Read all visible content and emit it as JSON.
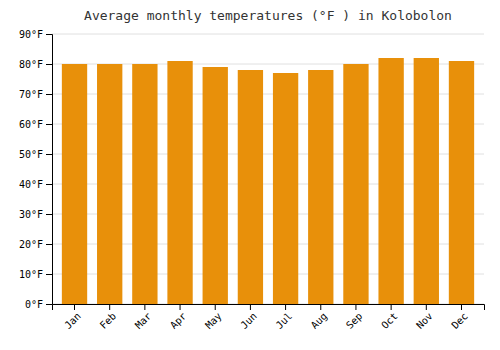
{
  "chart_data": {
    "type": "bar",
    "title": "Average monthly temperatures (°F ) in Kolobolon",
    "categories": [
      "Jan",
      "Feb",
      "Mar",
      "Apr",
      "May",
      "Jun",
      "Jul",
      "Aug",
      "Sep",
      "Oct",
      "Nov",
      "Dec"
    ],
    "values": [
      80,
      80,
      80,
      81,
      79,
      78,
      77,
      78,
      80,
      82,
      82,
      81
    ],
    "color": "#E8900A",
    "ylim": [
      0,
      90
    ],
    "yticks": [
      {
        "value": 0,
        "label": "0°F"
      },
      {
        "value": 10,
        "label": "10°F"
      },
      {
        "value": 20,
        "label": "20°F"
      },
      {
        "value": 30,
        "label": "30°F"
      },
      {
        "value": 40,
        "label": "40°F"
      },
      {
        "value": 50,
        "label": "50°F"
      },
      {
        "value": 60,
        "label": "60°F"
      },
      {
        "value": 70,
        "label": "70°F"
      },
      {
        "value": 80,
        "label": "80°F"
      },
      {
        "value": 90,
        "label": "90°F"
      }
    ],
    "grid": true
  }
}
